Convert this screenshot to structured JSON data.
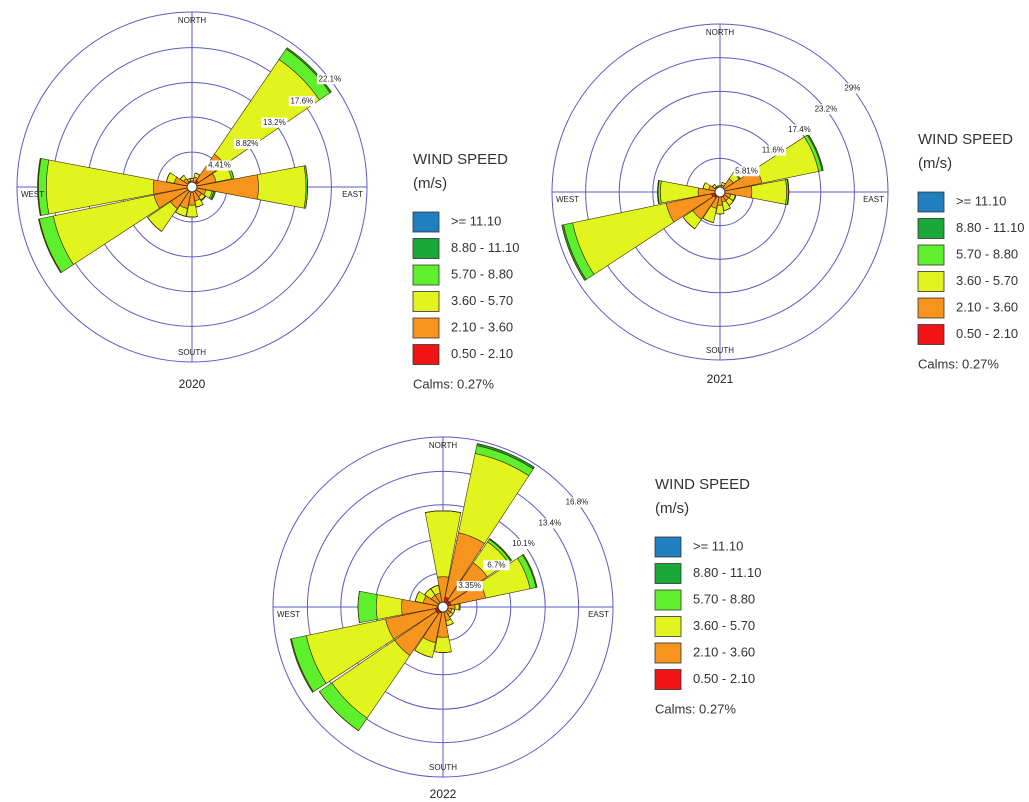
{
  "chart_data": [
    {
      "type": "windrose",
      "title": "2020",
      "directions": [
        "NORTH",
        "EAST",
        "SOUTH",
        "WEST"
      ],
      "rlim": [
        0,
        22.1
      ],
      "rticks": [
        {
          "value": 4.41,
          "label": "4.41%"
        },
        {
          "value": 8.82,
          "label": "8.82%"
        },
        {
          "value": 13.2,
          "label": "13.2%"
        },
        {
          "value": 17.6,
          "label": "17.6%"
        },
        {
          "value": 22.1,
          "label": "22.1%"
        }
      ],
      "ring_color": "#5b5bc4",
      "legend_title": "WIND SPEED",
      "legend_units": "(m/s)",
      "annotation": "Calms: 0.27%",
      "series": [
        {
          "name": ">= 11.10",
          "color": "#1f7fbf",
          "values": [
            0,
            0,
            0,
            0,
            0,
            0,
            0,
            0,
            0,
            0,
            0,
            0,
            0,
            0,
            0,
            0
          ]
        },
        {
          "name": "8.80 - 11.10",
          "color": "#1aa838",
          "values": [
            0,
            0,
            0.2,
            0,
            0,
            0.2,
            0,
            0,
            0,
            0,
            0,
            0.1,
            0.1,
            0,
            0,
            0
          ]
        },
        {
          "name": "5.70 - 8.80",
          "color": "#5ef02c",
          "values": [
            0,
            0,
            1.6,
            0.3,
            0.2,
            0.2,
            0.1,
            0,
            0,
            0,
            0,
            1.8,
            1.0,
            0,
            0,
            0
          ]
        },
        {
          "name": "3.60 - 5.70",
          "color": "#e2f41e",
          "values": [
            0.3,
            0.5,
            14.5,
            2.0,
            6.0,
            0.8,
            0.5,
            0.8,
            1.5,
            1.0,
            3.5,
            13.0,
            13.5,
            1.0,
            0.5,
            0.3
          ]
        },
        {
          "name": "2.10 - 3.60",
          "color": "#f7941d",
          "values": [
            0.5,
            0.8,
            4.0,
            2.5,
            8.0,
            1.5,
            1.2,
            1.5,
            2.0,
            2.5,
            3.0,
            4.5,
            4.5,
            2.0,
            1.0,
            0.5
          ]
        },
        {
          "name": "0.50 - 2.10",
          "color": "#f01414",
          "values": [
            0.3,
            0.5,
            1.0,
            0.6,
            0.4,
            0.3,
            0.3,
            0.3,
            0.3,
            0.3,
            0.3,
            0.4,
            0.4,
            0.3,
            0.3,
            0.3
          ]
        }
      ]
    },
    {
      "type": "windrose",
      "title": "2021",
      "directions": [
        "NORTH",
        "EAST",
        "SOUTH",
        "WEST"
      ],
      "rlim": [
        0,
        29
      ],
      "rticks": [
        {
          "value": 5.81,
          "label": "5.81%"
        },
        {
          "value": 11.6,
          "label": "11.6%"
        },
        {
          "value": 17.4,
          "label": "17.4%"
        },
        {
          "value": 23.2,
          "label": "23.2%"
        },
        {
          "value": 29,
          "label": "29%"
        }
      ],
      "ring_color": "#5b5bc4",
      "legend_title": "WIND SPEED",
      "legend_units": "(m/s)",
      "annotation": "Calms: 0.27%",
      "series": [
        {
          "name": ">= 11.10",
          "color": "#1f7fbf",
          "values": [
            0,
            0,
            0,
            0,
            0,
            0,
            0,
            0,
            0,
            0,
            0,
            0,
            0,
            0,
            0,
            0
          ]
        },
        {
          "name": "8.80 - 11.10",
          "color": "#1aa838",
          "values": [
            0,
            0,
            0,
            0.2,
            0.1,
            0,
            0,
            0,
            0,
            0,
            0,
            0.3,
            0.1,
            0,
            0,
            0
          ]
        },
        {
          "name": "5.70 - 8.80",
          "color": "#5ef02c",
          "values": [
            0,
            0,
            0.2,
            0.6,
            0.3,
            0.1,
            0,
            0,
            0,
            0,
            0,
            1.6,
            0.4,
            0,
            0,
            0
          ]
        },
        {
          "name": "3.60 - 5.70",
          "color": "#e2f41e",
          "values": [
            0.3,
            0.5,
            1.2,
            10.0,
            6.0,
            0.8,
            1.0,
            1.5,
            1.5,
            2.5,
            2.0,
            16.5,
            6.5,
            1.0,
            0.5,
            0.3
          ]
        },
        {
          "name": "2.10 - 3.60",
          "color": "#f7941d",
          "values": [
            0.5,
            0.8,
            2.0,
            6.5,
            5.0,
            1.5,
            1.5,
            1.5,
            2.0,
            2.5,
            4.5,
            8.0,
            3.0,
            1.5,
            0.8,
            0.5
          ]
        },
        {
          "name": "0.50 - 2.10",
          "color": "#f01414",
          "values": [
            0.3,
            0.4,
            0.8,
            0.9,
            0.5,
            0.4,
            0.3,
            0.3,
            0.3,
            0.4,
            1.2,
            1.5,
            0.8,
            0.5,
            0.3,
            0.3
          ]
        }
      ]
    },
    {
      "type": "windrose",
      "title": "2022",
      "directions": [
        "NORTH",
        "EAST",
        "SOUTH",
        "WEST"
      ],
      "rlim": [
        0,
        16.8
      ],
      "rticks": [
        {
          "value": 3.35,
          "label": "3.35%"
        },
        {
          "value": 6.7,
          "label": "6.7%"
        },
        {
          "value": 10.1,
          "label": "10.1%"
        },
        {
          "value": 13.4,
          "label": "13.4%"
        },
        {
          "value": 16.8,
          "label": "16.8%"
        }
      ],
      "ring_color": "#5b5bc4",
      "legend_title": "WIND SPEED",
      "legend_units": "(m/s)",
      "annotation": "Calms: 0.27%",
      "series": [
        {
          "name": ">= 11.10",
          "color": "#1f7fbf",
          "values": [
            0,
            0,
            0,
            0,
            0,
            0,
            0,
            0,
            0,
            0,
            0,
            0,
            0,
            0,
            0,
            0
          ]
        },
        {
          "name": "8.80 - 11.10",
          "color": "#1aa838",
          "values": [
            0,
            0.2,
            0.1,
            0.1,
            0,
            0,
            0,
            0,
            0,
            0,
            0,
            0.1,
            0,
            0,
            0,
            0
          ]
        },
        {
          "name": "5.70 - 8.80",
          "color": "#5ef02c",
          "values": [
            0,
            0.8,
            0.3,
            0.6,
            0.1,
            0,
            0,
            0,
            0,
            0,
            1.5,
            1.5,
            1.8,
            0,
            0,
            0
          ]
        },
        {
          "name": "3.60 - 5.70",
          "color": "#e2f41e",
          "values": [
            6.5,
            8.0,
            2.5,
            4.5,
            0.4,
            0.3,
            0.3,
            0.5,
            1.5,
            1.5,
            7.5,
            8.0,
            2.5,
            0.8,
            0.8,
            0.8
          ]
        },
        {
          "name": "2.10 - 3.60",
          "color": "#f7941d",
          "values": [
            2.5,
            6.5,
            4.5,
            3.5,
            0.8,
            0.6,
            0.6,
            1.0,
            2.5,
            3.0,
            5.0,
            5.0,
            3.5,
            1.5,
            1.0,
            1.0
          ]
        },
        {
          "name": "0.50 - 2.10",
          "color": "#f01414",
          "values": [
            0.5,
            1.0,
            0.8,
            0.8,
            0.4,
            0.3,
            0.3,
            0.4,
            0.5,
            0.6,
            0.8,
            0.8,
            0.6,
            0.5,
            0.4,
            0.4
          ]
        }
      ]
    }
  ]
}
